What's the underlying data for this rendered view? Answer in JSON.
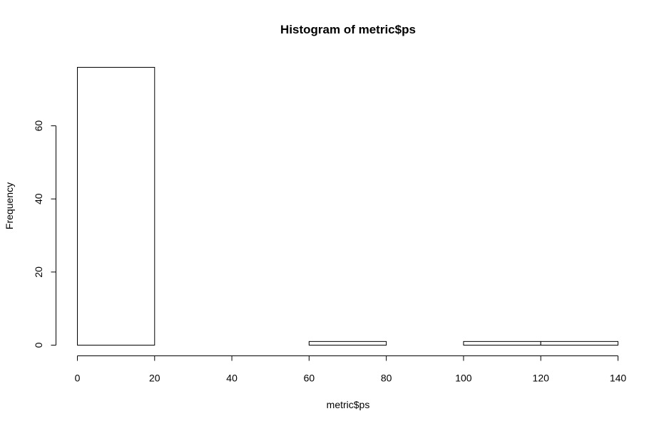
{
  "chart_data": {
    "type": "bar",
    "title": "Histogram of metric$ps",
    "xlabel": "metric$ps",
    "ylabel": "Frequency",
    "bins": [
      {
        "start": 0,
        "end": 20,
        "count": 76
      },
      {
        "start": 20,
        "end": 40,
        "count": 0
      },
      {
        "start": 40,
        "end": 60,
        "count": 0
      },
      {
        "start": 60,
        "end": 80,
        "count": 1
      },
      {
        "start": 80,
        "end": 100,
        "count": 0
      },
      {
        "start": 100,
        "end": 120,
        "count": 1
      },
      {
        "start": 120,
        "end": 140,
        "count": 1
      }
    ],
    "xlim": [
      0,
      140
    ],
    "ylim": [
      0,
      76
    ],
    "x_ticks": [
      0,
      20,
      40,
      60,
      80,
      100,
      120,
      140
    ],
    "y_ticks": [
      0,
      20,
      40,
      60
    ],
    "grid": false,
    "legend": "none"
  }
}
